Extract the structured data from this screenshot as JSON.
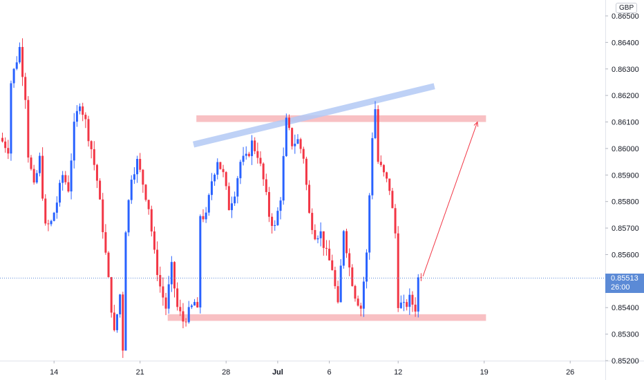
{
  "currency": "GBP",
  "last_price": {
    "label": "0.85513",
    "countdown": "26:00",
    "value": 0.85513
  },
  "colors": {
    "up": "#2962ff",
    "down": "#f23645",
    "zone": "#f7b5b9",
    "channel": "#b3c9f5",
    "arrow": "#f23645",
    "axis_text": "#131722"
  },
  "chart_data": {
    "type": "candlestick",
    "title": "",
    "xlabel": "",
    "ylabel": "",
    "ylim": [
      0.85165,
      0.86555
    ],
    "y_ticks": [
      "0.85200",
      "0.85300",
      "0.85400",
      "0.85500",
      "0.85600",
      "0.85700",
      "0.85800",
      "0.85900",
      "0.86000",
      "0.86100",
      "0.86200",
      "0.86300",
      "0.86400",
      "0.86500"
    ],
    "x_ticks": [
      {
        "label": "14",
        "index": 18,
        "bold": false
      },
      {
        "label": "21",
        "index": 48,
        "bold": false
      },
      {
        "label": "28",
        "index": 78,
        "bold": false
      },
      {
        "label": "Jul",
        "index": 96,
        "bold": true
      },
      {
        "label": "6",
        "index": 114,
        "bold": false
      },
      {
        "label": "12",
        "index": 138,
        "bold": false
      },
      {
        "label": "19",
        "index": 168,
        "bold": false
      },
      {
        "label": "26",
        "index": 198,
        "bold": false
      }
    ],
    "candle_count": 147,
    "anchors": [
      [
        0,
        0.8604
      ],
      [
        3,
        0.86
      ],
      [
        4,
        0.8625
      ],
      [
        7,
        0.8638
      ],
      [
        9,
        0.862
      ],
      [
        10,
        0.8598
      ],
      [
        12,
        0.8585
      ],
      [
        14,
        0.8596
      ],
      [
        16,
        0.857
      ],
      [
        18,
        0.8572
      ],
      [
        20,
        0.858
      ],
      [
        22,
        0.859
      ],
      [
        24,
        0.8585
      ],
      [
        26,
        0.8608
      ],
      [
        28,
        0.8618
      ],
      [
        30,
        0.861
      ],
      [
        32,
        0.86
      ],
      [
        34,
        0.8588
      ],
      [
        36,
        0.857
      ],
      [
        38,
        0.855
      ],
      [
        40,
        0.853
      ],
      [
        42,
        0.8545
      ],
      [
        43,
        0.8525
      ],
      [
        44,
        0.857
      ],
      [
        46,
        0.859
      ],
      [
        48,
        0.8595
      ],
      [
        50,
        0.8587
      ],
      [
        52,
        0.8578
      ],
      [
        54,
        0.856
      ],
      [
        56,
        0.8548
      ],
      [
        58,
        0.854
      ],
      [
        60,
        0.8555
      ],
      [
        62,
        0.854
      ],
      [
        64,
        0.8535
      ],
      [
        66,
        0.8538
      ],
      [
        68,
        0.8542
      ],
      [
        69,
        0.8538
      ],
      [
        70,
        0.8575
      ],
      [
        72,
        0.8574
      ],
      [
        74,
        0.8588
      ],
      [
        76,
        0.8596
      ],
      [
        78,
        0.859
      ],
      [
        80,
        0.8578
      ],
      [
        82,
        0.8584
      ],
      [
        84,
        0.8595
      ],
      [
        86,
        0.8596
      ],
      [
        88,
        0.8602
      ],
      [
        90,
        0.8598
      ],
      [
        92,
        0.8588
      ],
      [
        94,
        0.8575
      ],
      [
        96,
        0.857
      ],
      [
        98,
        0.8582
      ],
      [
        100,
        0.861
      ],
      [
        102,
        0.8602
      ],
      [
        104,
        0.8603
      ],
      [
        106,
        0.8597
      ],
      [
        108,
        0.8575
      ],
      [
        110,
        0.8568
      ],
      [
        112,
        0.8568
      ],
      [
        114,
        0.856
      ],
      [
        116,
        0.8555
      ],
      [
        118,
        0.854
      ],
      [
        120,
        0.857
      ],
      [
        122,
        0.8555
      ],
      [
        124,
        0.8545
      ],
      [
        126,
        0.854
      ],
      [
        128,
        0.856
      ],
      [
        130,
        0.8605
      ],
      [
        131,
        0.8615
      ],
      [
        132,
        0.8595
      ],
      [
        134,
        0.859
      ],
      [
        136,
        0.8585
      ],
      [
        138,
        0.8568
      ],
      [
        139,
        0.8542
      ],
      [
        141,
        0.854
      ],
      [
        143,
        0.8543
      ],
      [
        145,
        0.854
      ],
      [
        146,
        0.8551
      ]
    ],
    "annotations": {
      "resistance_zone": {
        "x0": 68,
        "x1": 169,
        "y0": 0.861,
        "y1": 0.86125
      },
      "support_zone": {
        "x0": 58,
        "x1": 169,
        "y0": 0.8535,
        "y1": 0.85375
      },
      "ascending_channel": {
        "x0": 67,
        "y0": 0.86015,
        "x1": 151,
        "y1": 0.86235
      },
      "projection_arrow": {
        "x0": 147,
        "y0": 0.85518,
        "x1": 166,
        "y1": 0.861
      }
    }
  }
}
